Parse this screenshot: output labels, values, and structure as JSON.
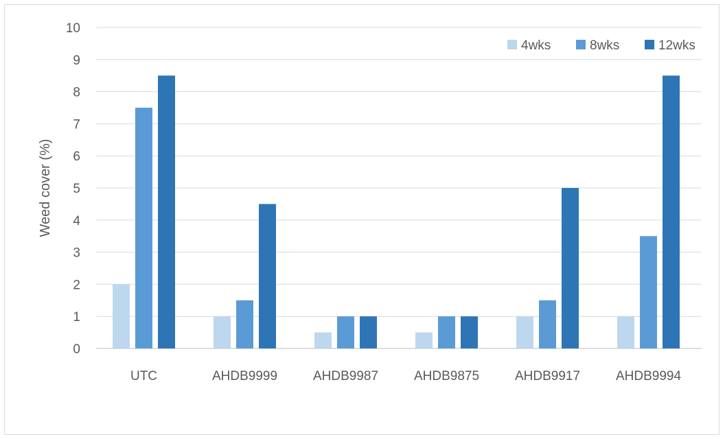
{
  "chart_data": {
    "type": "bar",
    "title": "",
    "xlabel": "",
    "ylabel": "Weed cover (%)",
    "ylim": [
      0,
      10
    ],
    "yticks": [
      0,
      1,
      2,
      3,
      4,
      5,
      6,
      7,
      8,
      9,
      10
    ],
    "grid": true,
    "legend_position": "top-right",
    "categories": [
      "UTC",
      "AHDB9999",
      "AHDB9987",
      "AHDB9875",
      "AHDB9917",
      "AHDB9994"
    ],
    "series": [
      {
        "name": "4wks",
        "color": "#bdd7ee",
        "values": [
          2,
          1,
          0.5,
          0.5,
          1,
          1
        ]
      },
      {
        "name": "8wks",
        "color": "#5b9bd5",
        "values": [
          7.5,
          1.5,
          1,
          1,
          1.5,
          3.5
        ]
      },
      {
        "name": "12wks",
        "color": "#2e75b6",
        "values": [
          8.5,
          4.5,
          1,
          1,
          5,
          8.5
        ]
      }
    ]
  }
}
